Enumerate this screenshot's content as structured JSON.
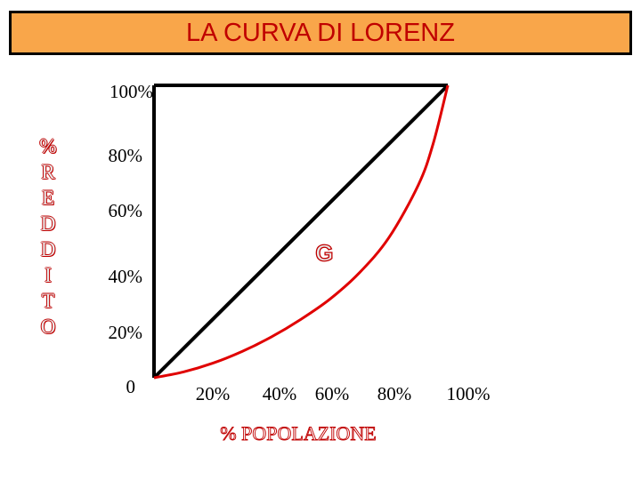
{
  "title": "LA CURVA DI LORENZ",
  "ylabel_letters": [
    "%",
    "R",
    "E",
    "D",
    "D",
    "I",
    "T",
    "O"
  ],
  "xlabel": "% POPOLAZIONE",
  "area_label": "G",
  "colors": {
    "title_bg": "#f9a64a",
    "title_text": "#c00000",
    "lorenz_curve": "#e00000",
    "equality_line": "#000000",
    "axis_label": "#c00000"
  },
  "chart_data": {
    "type": "line",
    "title": "LA CURVA DI LORENZ",
    "xlabel": "% POPOLAZIONE",
    "ylabel": "% REDDITO",
    "xlim": [
      0,
      100
    ],
    "ylim": [
      0,
      100
    ],
    "x_ticks": [
      "20%",
      "40%",
      "60%",
      "80%",
      "100%"
    ],
    "y_ticks": [
      "0",
      "20%",
      "40%",
      "60%",
      "80%",
      "100%"
    ],
    "series": [
      {
        "role": "equality_line",
        "x": [
          0,
          100
        ],
        "y": [
          0,
          100
        ]
      },
      {
        "role": "lorenz_curve",
        "x": [
          0,
          10,
          20,
          30,
          40,
          50,
          60,
          70,
          80,
          90,
          95,
          100
        ],
        "y": [
          0,
          2,
          5,
          9,
          14,
          20,
          27,
          36,
          48,
          66,
          80,
          100
        ]
      }
    ],
    "annotations": [
      {
        "text": "G",
        "x": 58,
        "y": 40
      }
    ],
    "grid": false
  }
}
